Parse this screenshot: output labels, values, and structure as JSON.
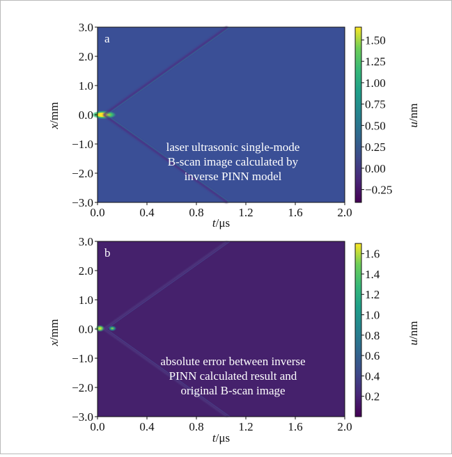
{
  "chart_data": [
    {
      "type": "heatmap",
      "panel_label": "a",
      "annotation": [
        "laser ultrasonic single-mode",
        "B-scan image calculated by",
        "inverse PINN model"
      ],
      "xlabel_italic": "t",
      "xlabel_unit": "/μs",
      "ylabel_italic": "x",
      "ylabel_unit": "/mm",
      "colorbar_label_italic": "u",
      "colorbar_label_unit": "/nm",
      "xlim": [
        0.0,
        2.0
      ],
      "ylim": [
        -3.0,
        3.0
      ],
      "x_ticks": [
        "0.0",
        "0.4",
        "0.8",
        "1.2",
        "1.6",
        "2.0"
      ],
      "y_ticks": [
        "3.0",
        "2.0",
        "1.0",
        "0.0",
        "−1.0",
        "−2.0",
        "−3.0"
      ],
      "colorbar_range": [
        -0.4,
        1.65
      ],
      "colorbar_ticks": [
        "1.50",
        "1.25",
        "1.00",
        "0.75",
        "0.50",
        "0.25",
        "0.00",
        "−0.25"
      ],
      "colormap": "viridis",
      "background_color": "#3a4f96",
      "features": [
        {
          "kind": "source",
          "t": 0.05,
          "x": 0.0,
          "u": 1.6
        },
        {
          "kind": "wavefront",
          "t_start": 0.05,
          "x_start": 0.0,
          "t_end": 1.05,
          "x_end": 3.0
        },
        {
          "kind": "wavefront",
          "t_start": 0.05,
          "x_start": 0.0,
          "t_end": 1.05,
          "x_end": -3.0
        }
      ]
    },
    {
      "type": "heatmap",
      "panel_label": "b",
      "annotation": [
        "absolute error between inverse",
        "PINN calculated result and",
        "original B-scan image"
      ],
      "xlabel_italic": "t",
      "xlabel_unit": "/μs",
      "ylabel_italic": "x",
      "ylabel_unit": "/mm",
      "colorbar_label_italic": "u",
      "colorbar_label_unit": "/nm",
      "xlim": [
        0.0,
        2.0
      ],
      "ylim": [
        -3.0,
        3.0
      ],
      "x_ticks": [
        "0.0",
        "0.4",
        "0.8",
        "1.2",
        "1.6",
        "2.0"
      ],
      "y_ticks": [
        "3.0",
        "2.0",
        "1.0",
        "0.0",
        "−1.0",
        "−2.0",
        "−3.0"
      ],
      "colorbar_range": [
        0.0,
        1.7
      ],
      "colorbar_ticks": [
        "1.6",
        "1.4",
        "1.2",
        "1.0",
        "0.8",
        "0.6",
        "0.4",
        "0.2"
      ],
      "colormap": "viridis",
      "background_color": "#45216c",
      "features": [
        {
          "kind": "hotspot",
          "t": 0.02,
          "x": 0.02,
          "u": 1.6
        },
        {
          "kind": "hotspot",
          "t": 0.12,
          "x": 0.02,
          "u": 0.9
        },
        {
          "kind": "wavefront",
          "t_start": 0.05,
          "x_start": 0.0,
          "t_end": 1.05,
          "x_end": 3.0
        },
        {
          "kind": "wavefront",
          "t_start": 0.05,
          "x_start": 0.0,
          "t_end": 1.05,
          "x_end": -3.0
        }
      ]
    }
  ]
}
